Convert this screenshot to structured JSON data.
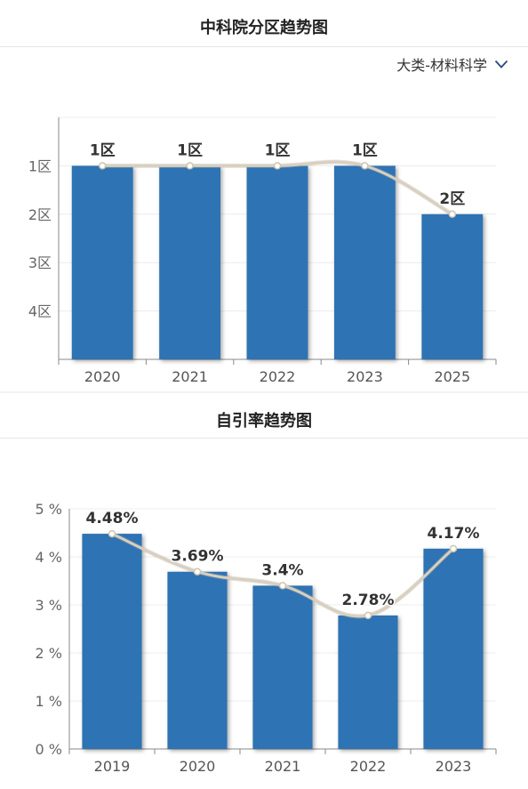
{
  "zone_panel": {
    "title": "中科院分区趋势图",
    "category_select": {
      "value": "大类-材料科学",
      "icon": "chevron-down-icon"
    },
    "chart_data": {
      "type": "bar",
      "categories": [
        "2020",
        "2021",
        "2022",
        "2023",
        "2025"
      ],
      "values": [
        1,
        1,
        1,
        1,
        2
      ],
      "value_labels": [
        "1区",
        "1区",
        "1区",
        "1区",
        "2区"
      ],
      "y_tick_labels": [
        "1区",
        "2区",
        "3区",
        "4区"
      ],
      "y_axis": "inverted",
      "ylim": [
        0,
        5
      ],
      "grid": true,
      "overlay_line": "smooth",
      "bar_color": "#2e73b3",
      "line_color": "#d8cfc0"
    }
  },
  "self_citation_panel": {
    "title": "自引率趋势图",
    "chart_data": {
      "type": "bar",
      "categories": [
        "2019",
        "2020",
        "2021",
        "2022",
        "2023"
      ],
      "values": [
        4.48,
        3.69,
        3.4,
        2.78,
        4.17
      ],
      "value_labels": [
        "4.48%",
        "3.69%",
        "3.4%",
        "2.78%",
        "4.17%"
      ],
      "y_tick_labels": [
        "0 %",
        "1 %",
        "2 %",
        "3 %",
        "4 %",
        "5 %"
      ],
      "ylim": [
        0,
        5
      ],
      "grid": true,
      "overlay_line": "smooth",
      "bar_color": "#2e73b3",
      "line_color": "#d8cfc0"
    }
  }
}
